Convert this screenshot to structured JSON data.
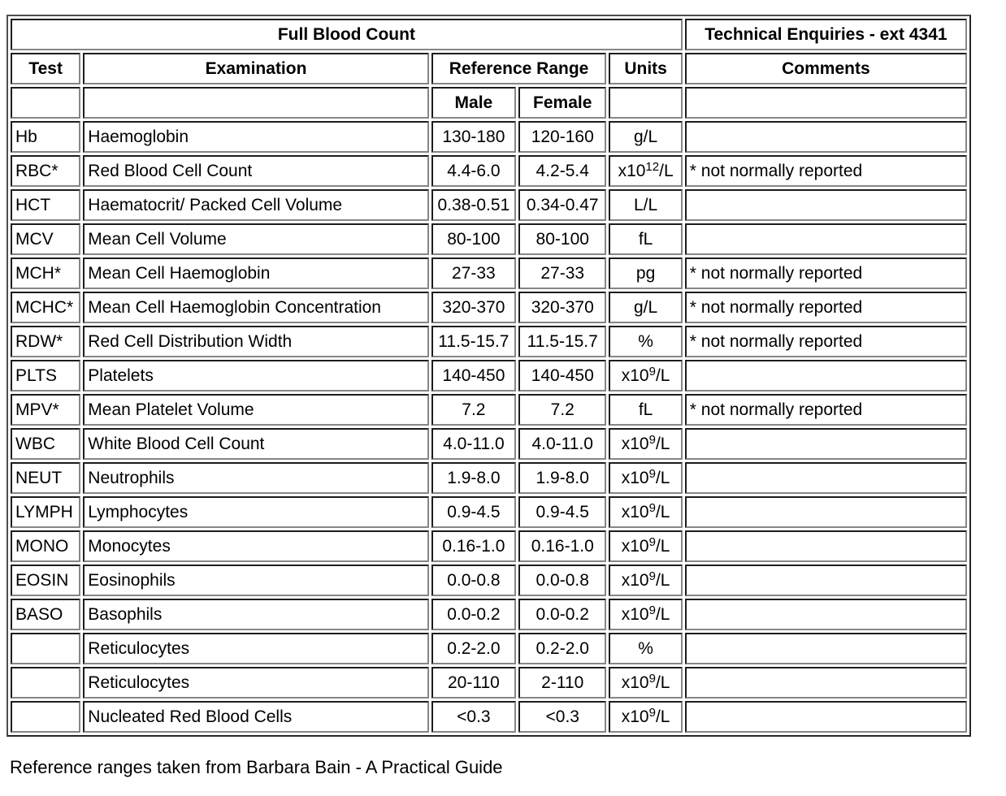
{
  "header": {
    "title": "Full Blood Count",
    "technical_enquiries": "Technical Enquiries - ext 4341",
    "columns": {
      "test": "Test",
      "examination": "Examination",
      "reference_range": "Reference Range",
      "units": "Units",
      "comments": "Comments",
      "male": "Male",
      "female": "Female"
    }
  },
  "table": {
    "rows": [
      {
        "test": "Hb",
        "examination": "Haemoglobin",
        "male": "130-180",
        "female": "120-160",
        "unit": {
          "base": "g/L",
          "sup": "",
          "rest": ""
        },
        "comment": ""
      },
      {
        "test": "RBC*",
        "examination": "Red Blood Cell Count",
        "male": "4.4-6.0",
        "female": "4.2-5.4",
        "unit": {
          "base": "x10",
          "sup": "12",
          "rest": "/L"
        },
        "comment": "* not normally reported"
      },
      {
        "test": "HCT",
        "examination": "Haematocrit/ Packed Cell Volume",
        "male": "0.38-0.51",
        "female": "0.34-0.47",
        "unit": {
          "base": "L/L",
          "sup": "",
          "rest": ""
        },
        "comment": ""
      },
      {
        "test": "MCV",
        "examination": "Mean Cell Volume",
        "male": "80-100",
        "female": "80-100",
        "unit": {
          "base": "fL",
          "sup": "",
          "rest": ""
        },
        "comment": ""
      },
      {
        "test": "MCH*",
        "examination": "Mean Cell Haemoglobin",
        "male": "27-33",
        "female": "27-33",
        "unit": {
          "base": "pg",
          "sup": "",
          "rest": ""
        },
        "comment": "* not normally reported"
      },
      {
        "test": "MCHC*",
        "examination": "Mean Cell Haemoglobin Concentration",
        "male": "320-370",
        "female": "320-370",
        "unit": {
          "base": "g/L",
          "sup": "",
          "rest": ""
        },
        "comment": "* not normally reported"
      },
      {
        "test": "RDW*",
        "examination": "Red Cell Distribution Width",
        "male": "11.5-15.7",
        "female": "11.5-15.7",
        "unit": {
          "base": "%",
          "sup": "",
          "rest": ""
        },
        "comment": "* not normally reported"
      },
      {
        "test": "PLTS",
        "examination": "Platelets",
        "male": "140-450",
        "female": "140-450",
        "unit": {
          "base": "x10",
          "sup": "9",
          "rest": "/L"
        },
        "comment": ""
      },
      {
        "test": "MPV*",
        "examination": "Mean Platelet Volume",
        "male": "7.2",
        "female": "7.2",
        "unit": {
          "base": "fL",
          "sup": "",
          "rest": ""
        },
        "comment": "* not normally reported"
      },
      {
        "test": "WBC",
        "examination": "White Blood Cell Count",
        "male": "4.0-11.0",
        "female": "4.0-11.0",
        "unit": {
          "base": "x10",
          "sup": "9",
          "rest": "/L"
        },
        "comment": ""
      },
      {
        "test": "NEUT",
        "examination": "Neutrophils",
        "male": "1.9-8.0",
        "female": "1.9-8.0",
        "unit": {
          "base": "x10",
          "sup": "9",
          "rest": "/L"
        },
        "comment": ""
      },
      {
        "test": "LYMPH",
        "examination": "Lymphocytes",
        "male": "0.9-4.5",
        "female": "0.9-4.5",
        "unit": {
          "base": "x10",
          "sup": "9",
          "rest": "/L"
        },
        "comment": ""
      },
      {
        "test": "MONO",
        "examination": "Monocytes",
        "male": "0.16-1.0",
        "female": "0.16-1.0",
        "unit": {
          "base": "x10",
          "sup": "9",
          "rest": "/L"
        },
        "comment": ""
      },
      {
        "test": "EOSIN",
        "examination": "Eosinophils",
        "male": "0.0-0.8",
        "female": "0.0-0.8",
        "unit": {
          "base": "x10",
          "sup": "9",
          "rest": "/L"
        },
        "comment": ""
      },
      {
        "test": "BASO",
        "examination": "Basophils",
        "male": "0.0-0.2",
        "female": "0.0-0.2",
        "unit": {
          "base": "x10",
          "sup": "9",
          "rest": "/L"
        },
        "comment": ""
      },
      {
        "test": "",
        "examination": "Reticulocytes",
        "male": "0.2-2.0",
        "female": "0.2-2.0",
        "unit": {
          "base": "%",
          "sup": "",
          "rest": ""
        },
        "comment": ""
      },
      {
        "test": "",
        "examination": "Reticulocytes",
        "male": "20-110",
        "female": "2-110",
        "unit": {
          "base": "x10",
          "sup": "9",
          "rest": "/L"
        },
        "comment": ""
      },
      {
        "test": "",
        "examination": "Nucleated Red Blood Cells",
        "male": "<0.3",
        "female": "<0.3",
        "unit": {
          "base": "x10",
          "sup": "9",
          "rest": "/L"
        },
        "comment": ""
      }
    ]
  },
  "footer": {
    "note": "Reference ranges taken from Barbara Bain - A Practical Guide"
  },
  "colors": {
    "background": "#ffffff",
    "text": "#000000",
    "cell_border_dark": "#1c1c1c",
    "cell_border_light": "#868686",
    "frame_border": "#262626"
  }
}
